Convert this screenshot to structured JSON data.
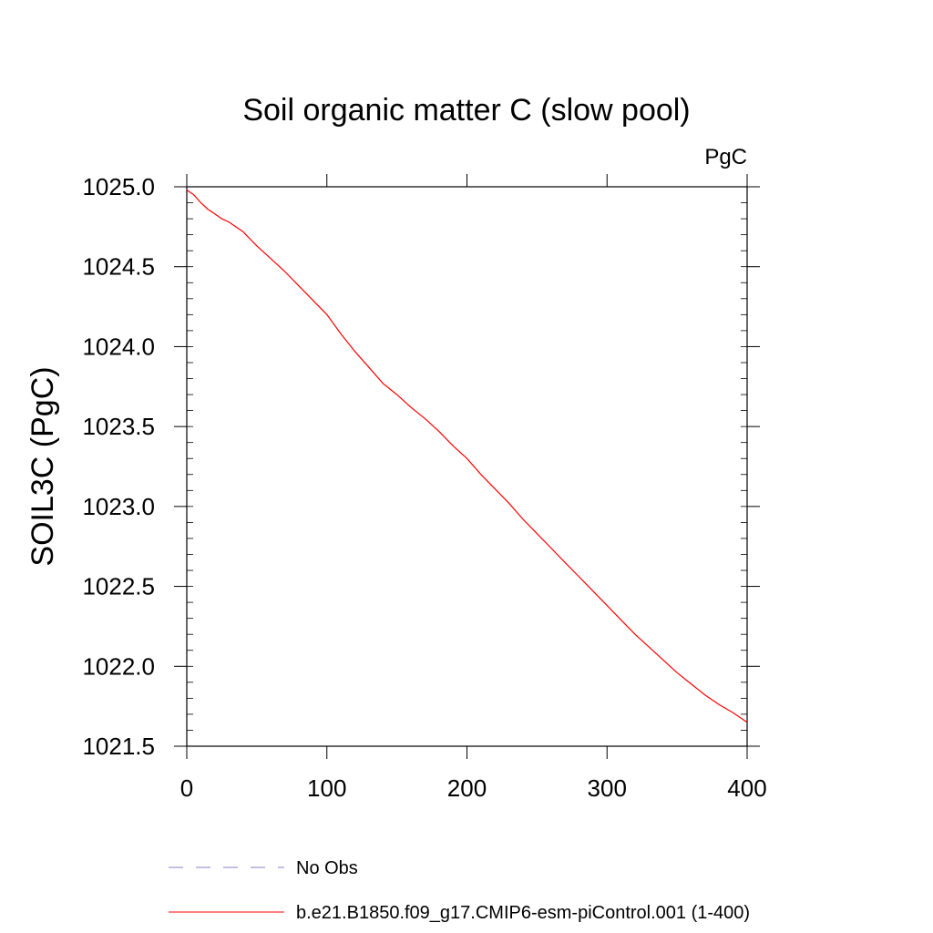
{
  "chart_data": {
    "type": "line",
    "title": "Soil organic matter C (slow pool)",
    "units": "PgC",
    "ylabel": "SOIL3C  (PgC)",
    "xlabel": "",
    "xlim": [
      0,
      400
    ],
    "ylim": [
      1021.5,
      1025.0
    ],
    "x_ticks": [
      0,
      100,
      200,
      300,
      400
    ],
    "x_tick_labels": [
      "0",
      "100",
      "200",
      "300",
      "400"
    ],
    "y_ticks": [
      1021.5,
      1022.0,
      1022.5,
      1023.0,
      1023.5,
      1024.0,
      1024.5,
      1025.0
    ],
    "y_tick_labels": [
      "1021.5",
      "1022.0",
      "1022.5",
      "1023.0",
      "1023.5",
      "1024.0",
      "1024.5",
      "1025.0"
    ],
    "grid": false,
    "legend_position": "bottom",
    "series": [
      {
        "name": "b.e21.B1850.f09_g17.CMIP6-esm-piControl.001 (1-400)",
        "color": "#ff0000",
        "style": "solid",
        "x": [
          0,
          5,
          10,
          15,
          20,
          25,
          30,
          35,
          40,
          50,
          60,
          70,
          80,
          90,
          100,
          110,
          120,
          130,
          140,
          150,
          160,
          170,
          180,
          190,
          200,
          210,
          220,
          230,
          240,
          250,
          260,
          270,
          280,
          290,
          300,
          310,
          320,
          330,
          340,
          350,
          360,
          370,
          380,
          390,
          400
        ],
        "y": [
          1024.98,
          1024.95,
          1024.9,
          1024.86,
          1024.83,
          1024.8,
          1024.78,
          1024.75,
          1024.72,
          1024.63,
          1024.55,
          1024.47,
          1024.38,
          1024.29,
          1024.2,
          1024.08,
          1023.97,
          1023.87,
          1023.77,
          1023.7,
          1023.62,
          1023.55,
          1023.47,
          1023.38,
          1023.3,
          1023.2,
          1023.11,
          1023.02,
          1022.92,
          1022.83,
          1022.74,
          1022.65,
          1022.56,
          1022.47,
          1022.38,
          1022.29,
          1022.2,
          1022.12,
          1022.04,
          1021.96,
          1021.89,
          1021.82,
          1021.76,
          1021.71,
          1021.65
        ]
      }
    ],
    "reference": {
      "name": "No Obs",
      "color": "#8a7fc6",
      "style": "dashed"
    }
  }
}
